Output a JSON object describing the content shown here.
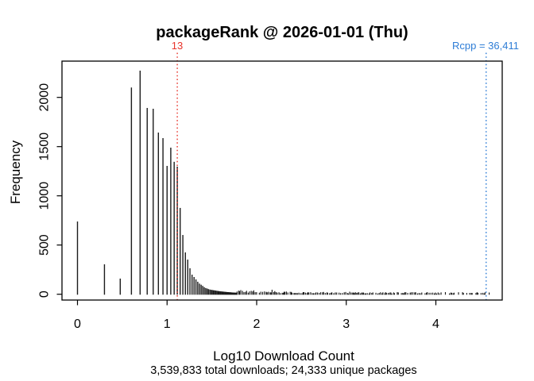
{
  "chart_data": {
    "type": "histogram",
    "title": "packageRank @ 2026-01-01 (Thu)",
    "xlabel": "Log10 Download Count",
    "xlabel_note": "3,539,833 total downloads; 24,333 unique packages",
    "ylabel": "Frequency",
    "x_ticks": [
      "0",
      "1",
      "2",
      "3",
      "4"
    ],
    "y_ticks": [
      "0",
      "500",
      "1000",
      "1500",
      "2000"
    ],
    "xlim": [
      -0.17,
      4.74
    ],
    "ylim": [
      0,
      2370
    ],
    "grid": false,
    "bar_color": "#1b1b1b",
    "bars_note": "pairs of [download_count, frequency]; bar x position = log10(download_count)",
    "bars": [
      [
        1,
        739
      ],
      [
        2,
        304
      ],
      [
        3,
        159
      ],
      [
        4,
        2100
      ],
      [
        5,
        2272
      ],
      [
        6,
        1893
      ],
      [
        7,
        1885
      ],
      [
        8,
        1643
      ],
      [
        9,
        1586
      ],
      [
        10,
        1304
      ],
      [
        11,
        1490
      ],
      [
        12,
        1345
      ],
      [
        13,
        1296
      ],
      [
        14,
        877
      ],
      [
        15,
        602
      ],
      [
        16,
        425
      ],
      [
        17,
        352
      ],
      [
        18,
        264
      ],
      [
        19,
        199
      ],
      [
        20,
        175
      ],
      [
        21,
        151
      ],
      [
        22,
        127
      ],
      [
        23,
        108
      ],
      [
        24,
        97
      ],
      [
        25,
        85
      ],
      [
        26,
        72
      ],
      [
        27,
        63
      ],
      [
        28,
        58
      ],
      [
        29,
        52
      ],
      [
        30,
        48
      ],
      [
        31,
        45
      ],
      [
        32,
        43
      ],
      [
        33,
        41
      ],
      [
        34,
        39
      ],
      [
        35,
        37
      ],
      [
        36,
        35
      ],
      [
        37,
        33
      ],
      [
        38,
        32
      ],
      [
        39,
        30
      ],
      [
        40,
        29
      ],
      [
        41,
        28
      ],
      [
        42,
        27
      ],
      [
        43,
        26
      ],
      [
        44,
        25
      ],
      [
        45,
        24
      ],
      [
        46,
        23
      ],
      [
        47,
        22
      ],
      [
        48,
        22
      ],
      [
        49,
        21
      ],
      [
        50,
        20
      ],
      [
        51,
        20
      ],
      [
        52,
        19
      ],
      [
        53,
        18
      ],
      [
        54,
        18
      ],
      [
        55,
        17
      ],
      [
        56,
        17
      ],
      [
        57,
        16
      ],
      [
        58,
        16
      ],
      [
        59,
        15
      ],
      [
        60,
        15
      ]
    ],
    "tail": {
      "note": "dense near-zero frequencies for download counts > 60",
      "x_start": 1.78,
      "x_end": 4.6,
      "min_freq": 8,
      "max_freq": 22,
      "start_boost": 2.2,
      "seed": 97531
    },
    "annotations": [
      {
        "id": "rank",
        "label": "13",
        "x": 1.1139,
        "color": "#e8342b",
        "line_style": "dotted"
      },
      {
        "id": "rcpp",
        "label": "Rcpp = 36,411",
        "x": 4.5612,
        "color": "#2e7dd6",
        "line_style": "dotted"
      }
    ]
  }
}
